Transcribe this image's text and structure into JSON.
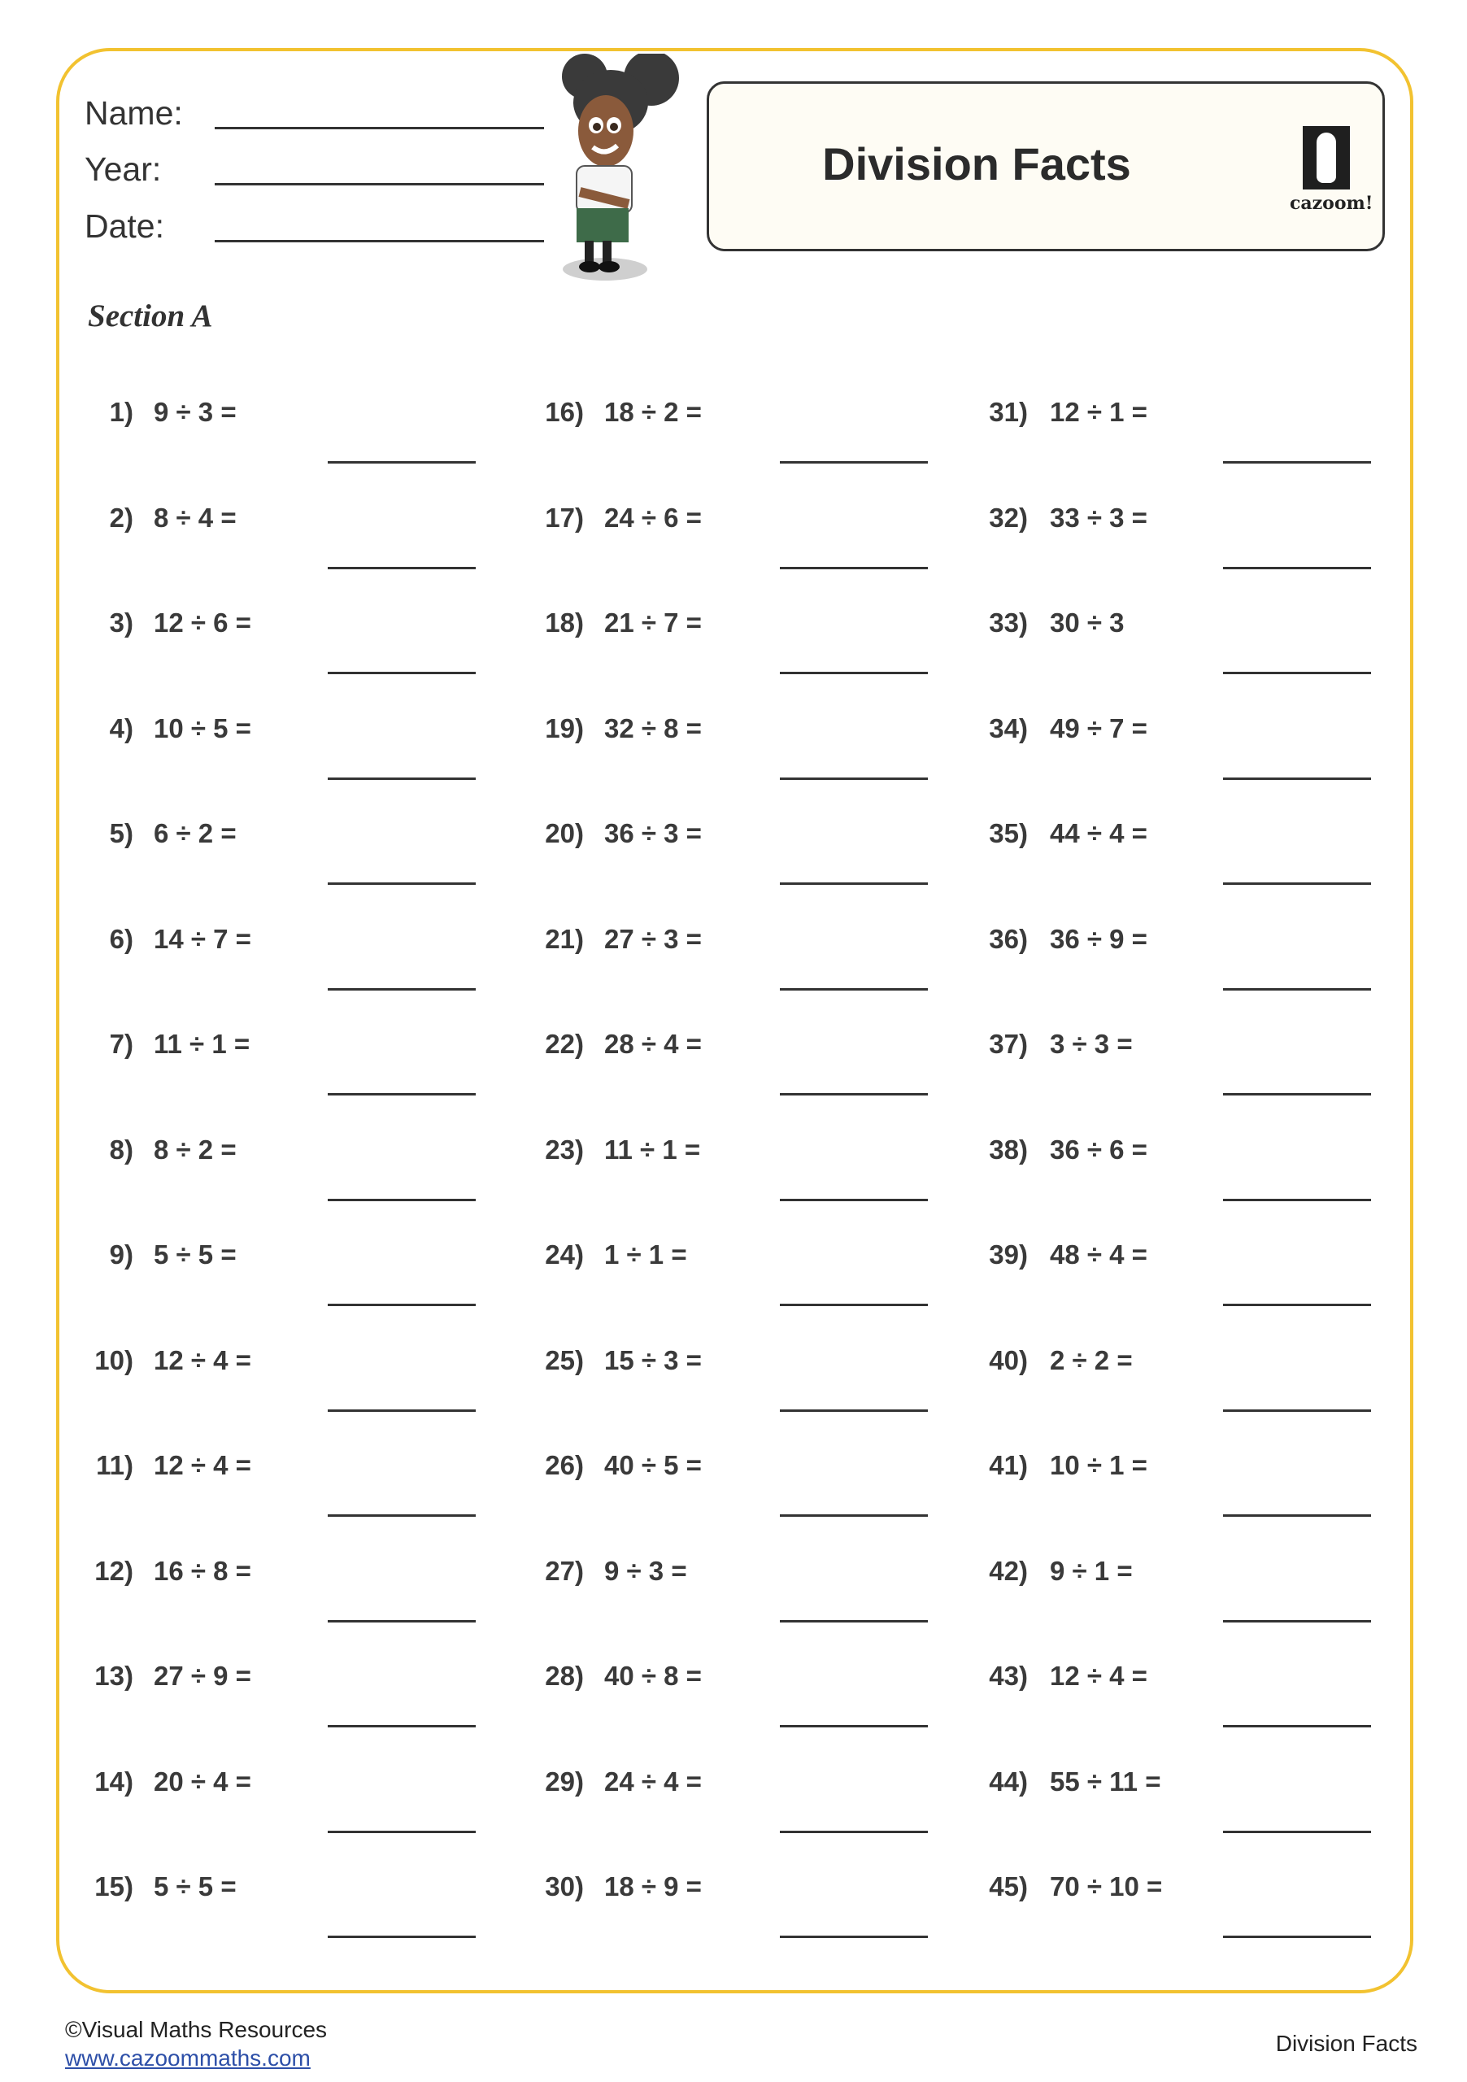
{
  "header": {
    "fields": [
      {
        "label": "Name:"
      },
      {
        "label": "Year:"
      },
      {
        "label": "Date:"
      }
    ],
    "title": "Division Facts",
    "logo_text": "cazoom!",
    "border_color": "#f2c230"
  },
  "section": {
    "title": "Section A"
  },
  "columns": [
    [
      {
        "num": "1)",
        "expr": "9 ÷ 3 ="
      },
      {
        "num": "2)",
        "expr": "8 ÷ 4 ="
      },
      {
        "num": "3)",
        "expr": "12 ÷ 6 ="
      },
      {
        "num": "4)",
        "expr": "10 ÷ 5 ="
      },
      {
        "num": "5)",
        "expr": "6 ÷ 2 ="
      },
      {
        "num": "6)",
        "expr": "14 ÷ 7 ="
      },
      {
        "num": "7)",
        "expr": "11 ÷ 1 ="
      },
      {
        "num": "8)",
        "expr": "8 ÷ 2 ="
      },
      {
        "num": "9)",
        "expr": "5 ÷ 5 ="
      },
      {
        "num": "10)",
        "expr": "12 ÷ 4 ="
      },
      {
        "num": "11)",
        "expr": "12 ÷ 4 ="
      },
      {
        "num": "12)",
        "expr": "16 ÷ 8 ="
      },
      {
        "num": "13)",
        "expr": "27 ÷ 9 ="
      },
      {
        "num": "14)",
        "expr": "20 ÷ 4 ="
      },
      {
        "num": "15)",
        "expr": "5 ÷ 5 ="
      }
    ],
    [
      {
        "num": "16)",
        "expr": "18 ÷ 2 ="
      },
      {
        "num": "17)",
        "expr": "24 ÷ 6 ="
      },
      {
        "num": "18)",
        "expr": "21 ÷ 7 ="
      },
      {
        "num": "19)",
        "expr": "32 ÷ 8 ="
      },
      {
        "num": "20)",
        "expr": "36 ÷ 3 ="
      },
      {
        "num": "21)",
        "expr": "27 ÷ 3 ="
      },
      {
        "num": "22)",
        "expr": "28 ÷ 4 ="
      },
      {
        "num": "23)",
        "expr": "11 ÷ 1 ="
      },
      {
        "num": "24)",
        "expr": "1 ÷ 1 ="
      },
      {
        "num": "25)",
        "expr": "15 ÷ 3 ="
      },
      {
        "num": "26)",
        "expr": "40 ÷ 5 ="
      },
      {
        "num": "27)",
        "expr": "9 ÷ 3 ="
      },
      {
        "num": "28)",
        "expr": "40 ÷ 8 ="
      },
      {
        "num": "29)",
        "expr": "24 ÷ 4 ="
      },
      {
        "num": "30)",
        "expr": "18 ÷ 9 ="
      }
    ],
    [
      {
        "num": "31)",
        "expr": "12 ÷ 1 ="
      },
      {
        "num": "32)",
        "expr": "33 ÷ 3 ="
      },
      {
        "num": "33)",
        "expr": "30 ÷ 3"
      },
      {
        "num": "34)",
        "expr": "49 ÷ 7 ="
      },
      {
        "num": "35)",
        "expr": "44 ÷ 4 ="
      },
      {
        "num": "36)",
        "expr": "36 ÷ 9 ="
      },
      {
        "num": "37)",
        "expr": "3 ÷ 3 ="
      },
      {
        "num": "38)",
        "expr": "36 ÷ 6 ="
      },
      {
        "num": "39)",
        "expr": "48 ÷ 4 ="
      },
      {
        "num": "40)",
        "expr": "2 ÷ 2 ="
      },
      {
        "num": "41)",
        "expr": "10 ÷ 1 ="
      },
      {
        "num": "42)",
        "expr": "9 ÷ 1 ="
      },
      {
        "num": "43)",
        "expr": "12 ÷ 4 ="
      },
      {
        "num": "44)",
        "expr": "55 ÷ 11 ="
      },
      {
        "num": "45)",
        "expr": "70 ÷ 10 ="
      }
    ]
  ],
  "footer": {
    "copyright": "©Visual Maths Resources",
    "link": "www.cazoommaths.com",
    "right": "Division Facts"
  }
}
